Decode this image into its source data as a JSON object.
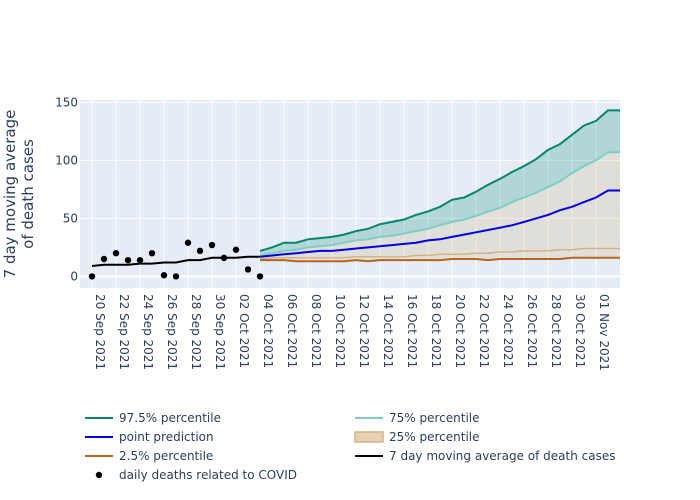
{
  "chart_data": {
    "type": "line",
    "title": "",
    "xlabel": "",
    "ylabel": "7 day moving average of death cases",
    "ylabel_lines": [
      "7 day moving average",
      "of death cases"
    ],
    "ylim": [
      -10,
      152
    ],
    "yticks": [
      0,
      50,
      100,
      150
    ],
    "x_start": "2021-09-19",
    "x_end": "2021-11-03",
    "xtick_labels": [
      "20 Sep 2021",
      "22 Sep 2021",
      "24 Sep 2021",
      "26 Sep 2021",
      "28 Sep 2021",
      "30 Sep 2021",
      "02 Oct 2021",
      "04 Oct 2021",
      "06 Oct 2021",
      "08 Oct 2021",
      "10 Oct 2021",
      "12 Oct 2021",
      "14 Oct 2021",
      "16 Oct 2021",
      "18 Oct 2021",
      "20 Oct 2021",
      "22 Oct 2021",
      "24 Oct 2021",
      "26 Oct 2021",
      "28 Oct 2021",
      "30 Oct 2021",
      "01 Nov 2021"
    ],
    "xtick_dates": [
      "2021-09-20",
      "2021-09-22",
      "2021-09-24",
      "2021-09-26",
      "2021-09-28",
      "2021-09-30",
      "2021-10-02",
      "2021-10-04",
      "2021-10-06",
      "2021-10-08",
      "2021-10-10",
      "2021-10-12",
      "2021-10-14",
      "2021-10-16",
      "2021-10-18",
      "2021-10-20",
      "2021-10-22",
      "2021-10-24",
      "2021-10-26",
      "2021-10-28",
      "2021-10-30",
      "2021-11-01"
    ],
    "grid": true,
    "background": "#e5ecf6",
    "legend_position": "bottom",
    "forecast_dates": [
      "2021-10-04",
      "2021-10-05",
      "2021-10-06",
      "2021-10-07",
      "2021-10-08",
      "2021-10-09",
      "2021-10-10",
      "2021-10-11",
      "2021-10-12",
      "2021-10-13",
      "2021-10-14",
      "2021-10-15",
      "2021-10-16",
      "2021-10-17",
      "2021-10-18",
      "2021-10-19",
      "2021-10-20",
      "2021-10-21",
      "2021-10-22",
      "2021-10-23",
      "2021-10-24",
      "2021-10-25",
      "2021-10-26",
      "2021-10-27",
      "2021-10-28",
      "2021-10-29",
      "2021-10-30",
      "2021-10-31",
      "2021-11-01",
      "2021-11-02",
      "2021-11-03"
    ],
    "series": [
      {
        "name": "97.5% percentile",
        "color": "#00876c",
        "values": [
          22,
          25,
          29,
          29,
          32,
          33,
          34,
          36,
          39,
          41,
          45,
          47,
          49,
          53,
          56,
          60,
          66,
          68,
          73,
          79,
          84,
          90,
          95,
          101,
          109,
          114,
          122,
          130,
          134,
          143,
          143
        ]
      },
      {
        "name": "75% percentile",
        "color": "#7ecfc0",
        "values": [
          18,
          20,
          22,
          23,
          25,
          26,
          27,
          29,
          31,
          32,
          34,
          35,
          37,
          39,
          41,
          44,
          47,
          49,
          52,
          56,
          59,
          64,
          68,
          72,
          77,
          82,
          89,
          95,
          100,
          107,
          107
        ]
      },
      {
        "name": "point prediction",
        "color": "#0000e6",
        "values": [
          17,
          18,
          19,
          20,
          21,
          22,
          22,
          23,
          24,
          25,
          26,
          27,
          28,
          29,
          31,
          32,
          34,
          36,
          38,
          40,
          42,
          44,
          47,
          50,
          53,
          57,
          60,
          64,
          68,
          74,
          74
        ]
      },
      {
        "name": "25% percentile",
        "color": "#d4b483",
        "values": [
          15,
          16,
          16,
          16,
          16,
          16,
          16,
          16,
          17,
          17,
          17,
          17,
          17,
          18,
          18,
          19,
          19,
          19,
          20,
          20,
          21,
          21,
          22,
          22,
          22,
          23,
          23,
          24,
          24,
          24,
          24
        ]
      },
      {
        "name": "2.5% percentile",
        "color": "#b5651d",
        "values": [
          14,
          14,
          14,
          13,
          13,
          13,
          13,
          13,
          14,
          13,
          14,
          14,
          14,
          14,
          14,
          14,
          15,
          15,
          15,
          14,
          15,
          15,
          15,
          15,
          15,
          15,
          16,
          16,
          16,
          16,
          16
        ]
      },
      {
        "name": "7 day moving average of death cases",
        "color": "#000000",
        "dates": [
          "2021-09-20",
          "2021-09-21",
          "2021-09-22",
          "2021-09-23",
          "2021-09-24",
          "2021-09-25",
          "2021-09-26",
          "2021-09-27",
          "2021-09-28",
          "2021-09-29",
          "2021-09-30",
          "2021-10-01",
          "2021-10-02",
          "2021-10-03",
          "2021-10-04"
        ],
        "values": [
          9,
          10,
          10,
          10,
          11,
          11,
          12,
          12,
          14,
          14,
          16,
          16,
          16,
          17,
          17
        ]
      },
      {
        "name": "daily deaths related to COVID",
        "color": "#000000",
        "mode": "markers",
        "dates": [
          "2021-09-20",
          "2021-09-21",
          "2021-09-22",
          "2021-09-23",
          "2021-09-24",
          "2021-09-25",
          "2021-09-26",
          "2021-09-27",
          "2021-09-28",
          "2021-09-29",
          "2021-09-30",
          "2021-10-01",
          "2021-10-02",
          "2021-10-03",
          "2021-10-04"
        ],
        "values": [
          0,
          15,
          20,
          14,
          14,
          20,
          1,
          0,
          29,
          22,
          27,
          16,
          23,
          6,
          0
        ]
      }
    ],
    "legend": [
      {
        "label": "97.5% percentile",
        "type": "line",
        "color": "#00876c"
      },
      {
        "label": "75% percentile",
        "type": "line",
        "color": "#7ecfc0"
      },
      {
        "label": "point prediction",
        "type": "line",
        "color": "#0000e6"
      },
      {
        "label": "25% percentile",
        "type": "band",
        "color": "#d4b483"
      },
      {
        "label": "2.5% percentile",
        "type": "line",
        "color": "#b5651d"
      },
      {
        "label": "7 day moving average of death cases",
        "type": "line",
        "color": "#000000"
      },
      {
        "label": "daily deaths related to COVID",
        "type": "marker",
        "color": "#000000"
      }
    ]
  }
}
